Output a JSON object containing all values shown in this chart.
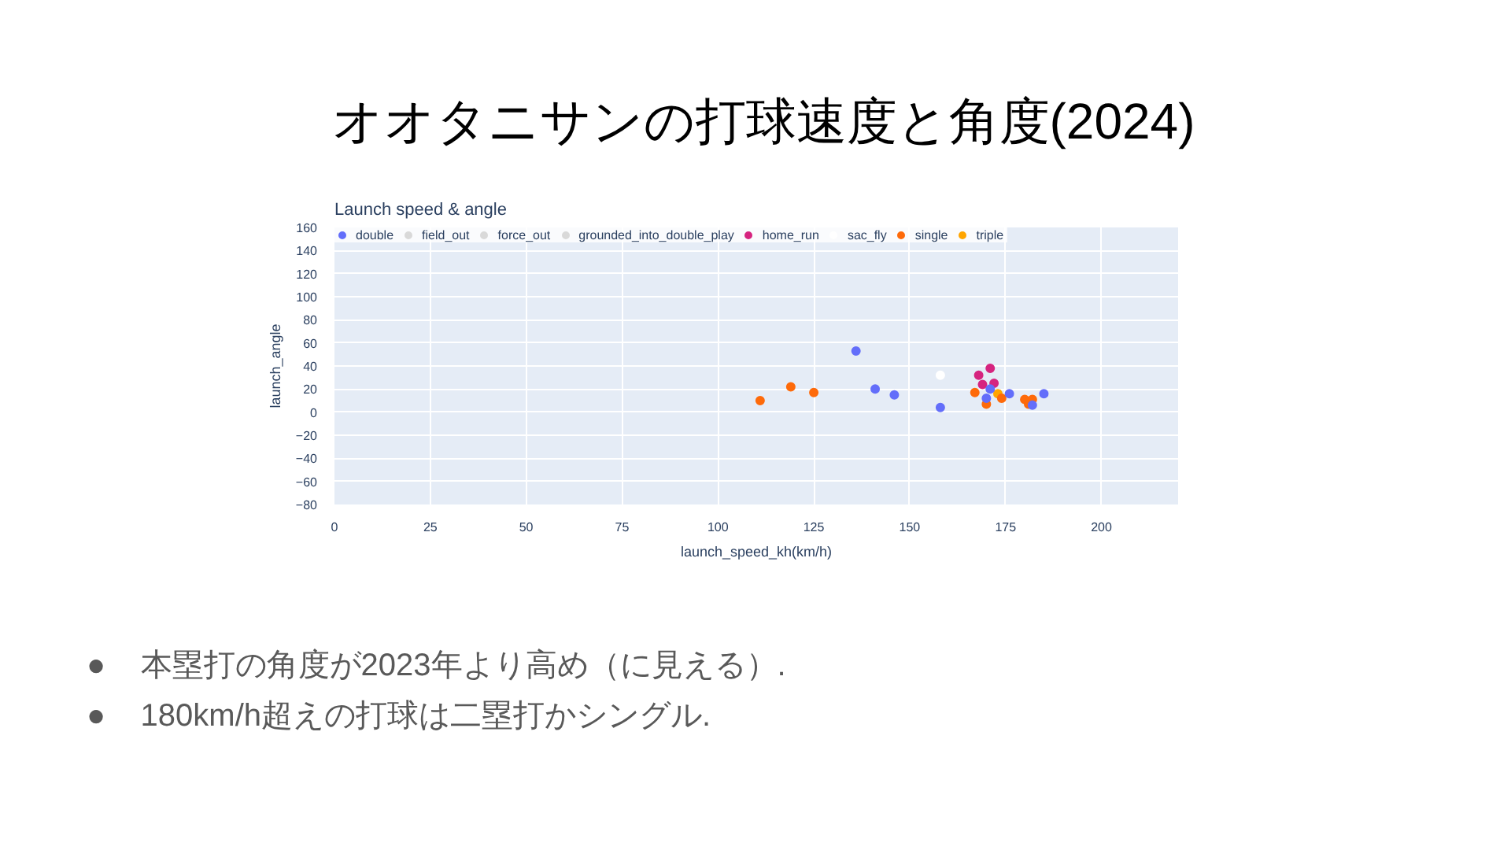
{
  "chart_data": {
    "type": "scatter",
    "title": "オオタニサンの打球速度と角度(2024)",
    "subtitle": "Launch speed & angle",
    "xlabel": "launch_speed_kh(km/h)",
    "ylabel": "launch_angle",
    "xlim": [
      0,
      220
    ],
    "xticks": [
      0,
      25,
      50,
      75,
      100,
      125,
      150,
      175,
      200
    ],
    "ylim": [
      -80,
      160
    ],
    "yticks": [
      -80,
      -60,
      -40,
      -20,
      0,
      20,
      40,
      60,
      80,
      100,
      120,
      140,
      160
    ],
    "grid": true,
    "legend": "top left",
    "marker": "circle",
    "series": [
      {
        "name": "double",
        "color": "#636efa",
        "x": [
          136,
          141,
          146,
          158,
          171,
          170,
          176,
          182,
          185
        ],
        "values": [
          53,
          20,
          15,
          4,
          20,
          12,
          16,
          6,
          16
        ]
      },
      {
        "name": "field_out",
        "color": "#d9d9d9"
      },
      {
        "name": "force_out",
        "color": "#d9d9d9"
      },
      {
        "name": "grounded_into_double_play",
        "color": "#d9d9d9"
      },
      {
        "name": "home_run",
        "color": "#d6247f",
        "x": [
          168,
          171,
          169,
          172
        ],
        "values": [
          32,
          38,
          24,
          25
        ]
      },
      {
        "name": "sac_fly",
        "color": "#ffffff",
        "x": [
          158
        ],
        "values": [
          32
        ]
      },
      {
        "name": "single",
        "color": "#fe6a0a",
        "x": [
          111,
          119,
          125,
          167,
          170,
          174,
          180,
          181,
          182
        ],
        "values": [
          10,
          22,
          17,
          17,
          7,
          12,
          11,
          7,
          11
        ]
      },
      {
        "name": "triple",
        "color": "#ffa500",
        "x": [
          173
        ],
        "values": [
          16
        ]
      }
    ],
    "annotations": [
      "●    本塁打の角度が2023年より高め（に見える）.",
      "●    180km/h超えの打球は二塁打かシングル."
    ]
  }
}
